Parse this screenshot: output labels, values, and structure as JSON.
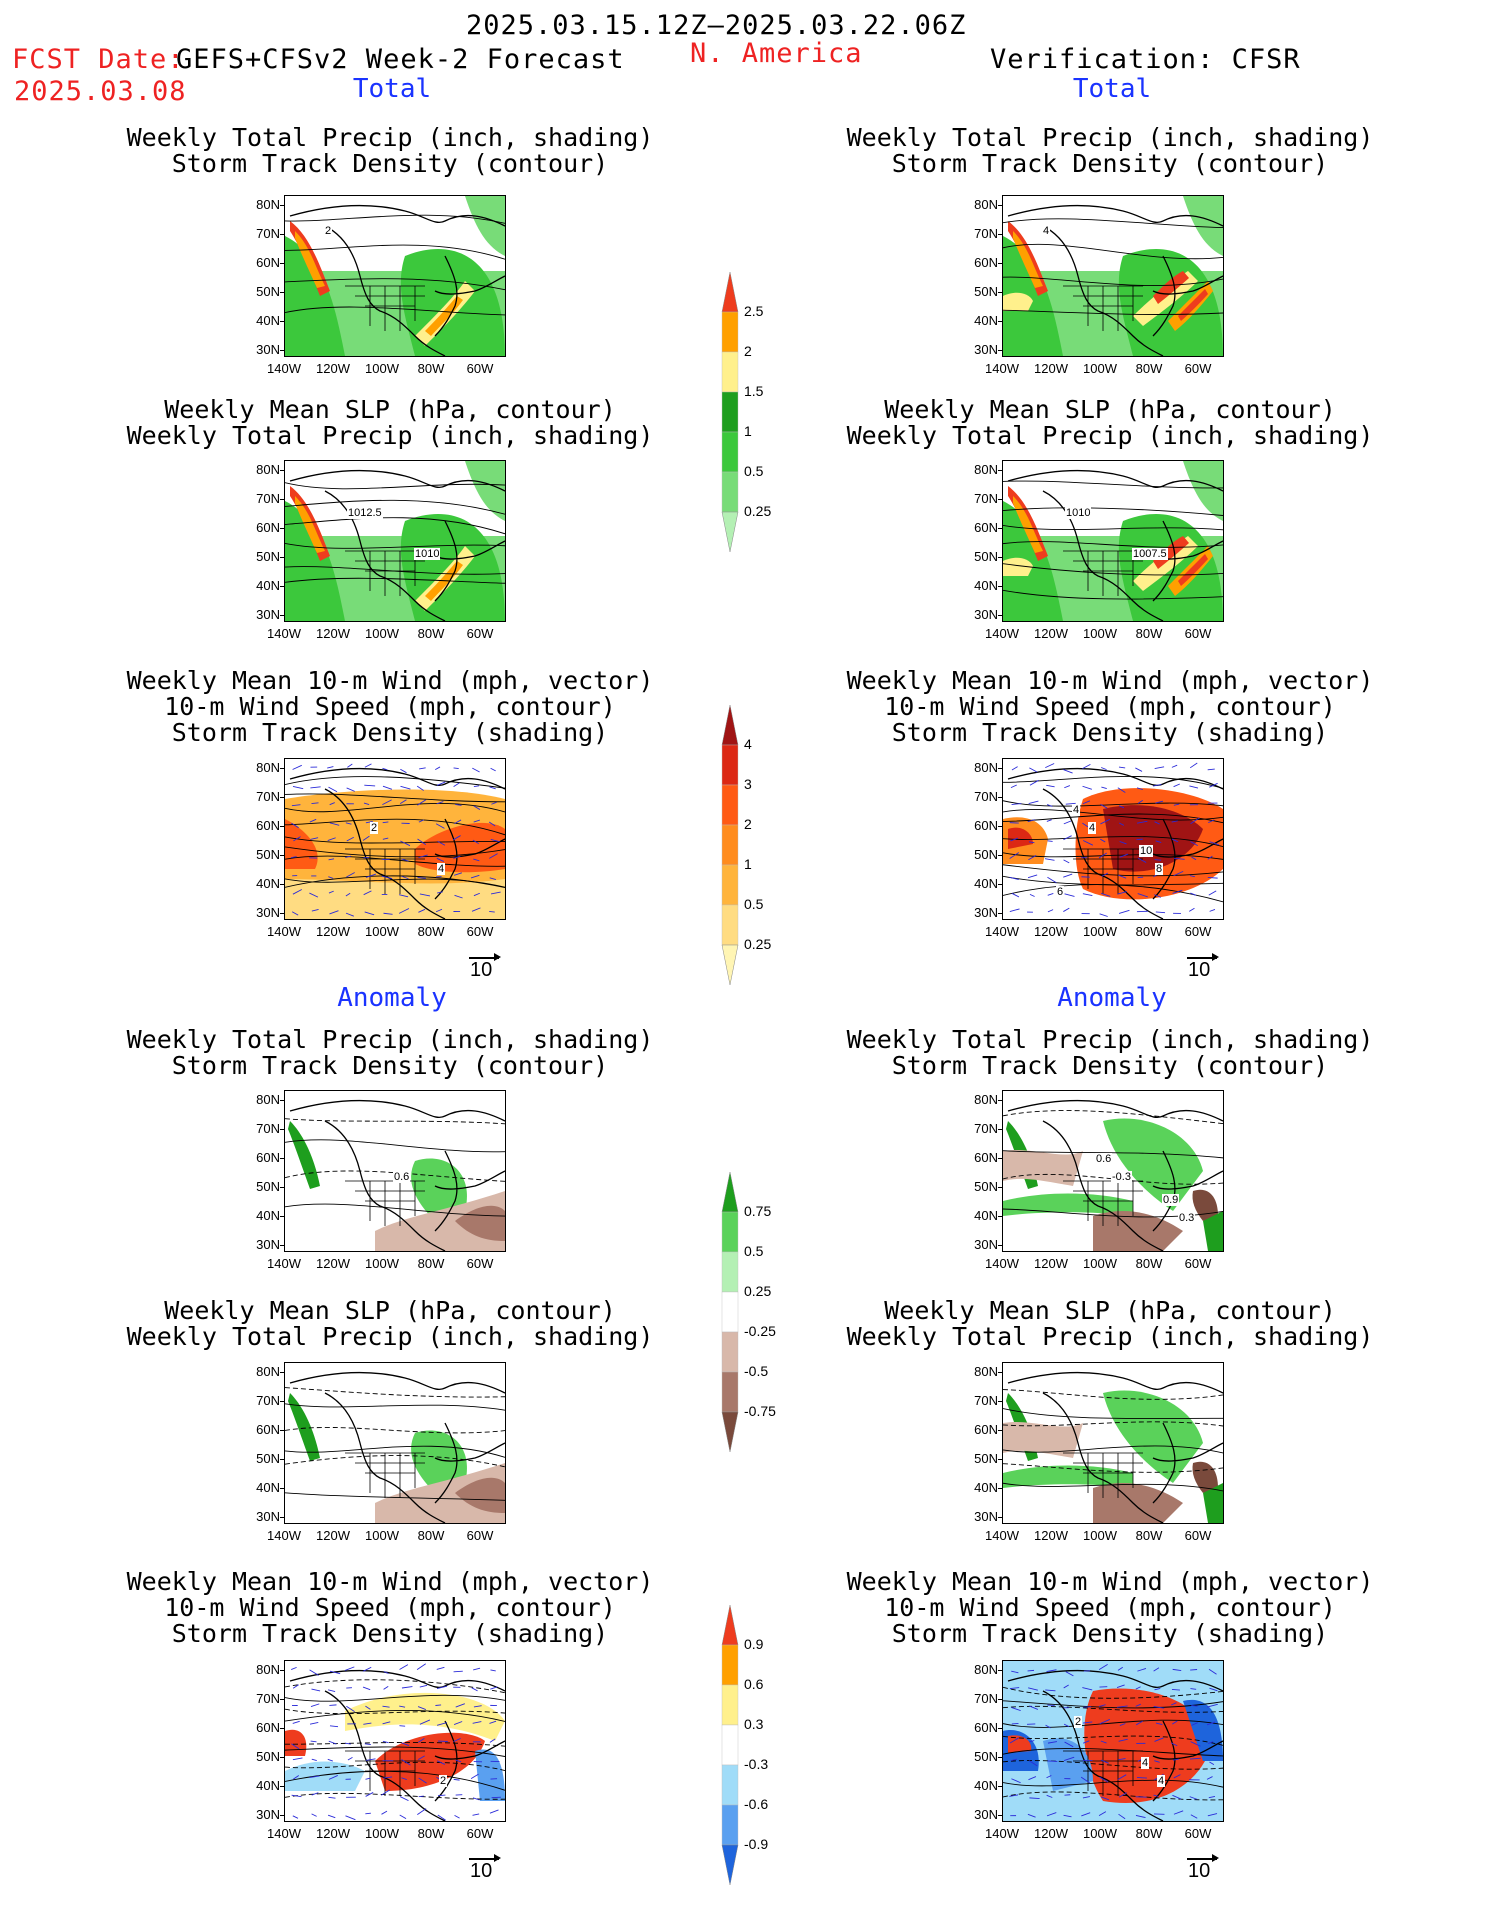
{
  "header": {
    "period": "2025.03.15.12Z–2025.03.22.06Z",
    "fcst_label": "FCST Date:",
    "fcst_date": "2025.03.08",
    "forecast_title": "GEFS+CFSv2 Week-2 Forecast",
    "region": "N. America",
    "verification": "Verification: CFSR"
  },
  "sections": {
    "total": "Total",
    "anomaly": "Anomaly"
  },
  "panel_titles": {
    "precip_storm": [
      "Weekly Total Precip (inch, shading)",
      "Storm Track Density (contour)"
    ],
    "slp_precip": [
      "Weekly Mean SLP (hPa, contour)",
      "Weekly Total Precip (inch, shading)"
    ],
    "wind_storm": [
      "Weekly Mean 10-m Wind (mph, vector)",
      "10-m Wind Speed (mph, contour)",
      "Storm Track Density (shading)"
    ]
  },
  "axes": {
    "lat_labels": [
      "80N",
      "70N",
      "60N",
      "50N",
      "40N",
      "30N"
    ],
    "lon_labels": [
      "140W",
      "120W",
      "100W",
      "80W",
      "60W"
    ]
  },
  "wind_ref": "10",
  "contour_labels": {
    "fcst_precip_storm_total": [
      "2"
    ],
    "fcst_slp_total": [
      "1012.5",
      "1010"
    ],
    "fcst_wind_total": [
      "2",
      "4"
    ],
    "ver_precip_storm_total": [
      "4"
    ],
    "ver_slp_total": [
      "1010",
      "1007.5"
    ],
    "ver_wind_total": [
      "4",
      "8",
      "4",
      "10",
      "6"
    ],
    "fcst_precip_storm_anom": [
      "0.6"
    ],
    "ver_precip_storm_anom": [
      "-0.3",
      "0.3",
      "0.6",
      "0.9"
    ],
    "fcst_wind_anom": [
      "2"
    ],
    "ver_wind_anom": [
      "4",
      "2",
      "4"
    ]
  },
  "colorbars": {
    "precip_total": {
      "levels": [
        "0.25",
        "0.5",
        "1",
        "1.5",
        "2",
        "2.5"
      ],
      "colors": [
        "#b4f0b4",
        "#78dc78",
        "#3cc83c",
        "#1e9e1e",
        "#fff08c",
        "#ffa000",
        "#ee3c1e"
      ]
    },
    "storm_total": {
      "levels": [
        "0.25",
        "0.5",
        "1",
        "2",
        "3",
        "4"
      ],
      "colors": [
        "#fff5b4",
        "#ffdc82",
        "#ffb43c",
        "#ff8c1e",
        "#ff5a14",
        "#dc2814",
        "#a01414"
      ]
    },
    "precip_anom": {
      "levels": [
        "-0.75",
        "-0.5",
        "-0.25",
        "0.25",
        "0.5",
        "0.75"
      ],
      "colors": [
        "#7a4a3c",
        "#a8786a",
        "#d8b8aa",
        "#ffffff",
        "#b4f0b4",
        "#5ad25a",
        "#1e9e1e"
      ]
    },
    "storm_anom": {
      "levels": [
        "-0.9",
        "-0.6",
        "-0.3",
        "0.3",
        "0.6",
        "0.9"
      ],
      "colors": [
        "#1e64dc",
        "#5aa0f0",
        "#a0dcf8",
        "#ffffff",
        "#fff08c",
        "#ffa000",
        "#ee3c1e"
      ]
    }
  }
}
